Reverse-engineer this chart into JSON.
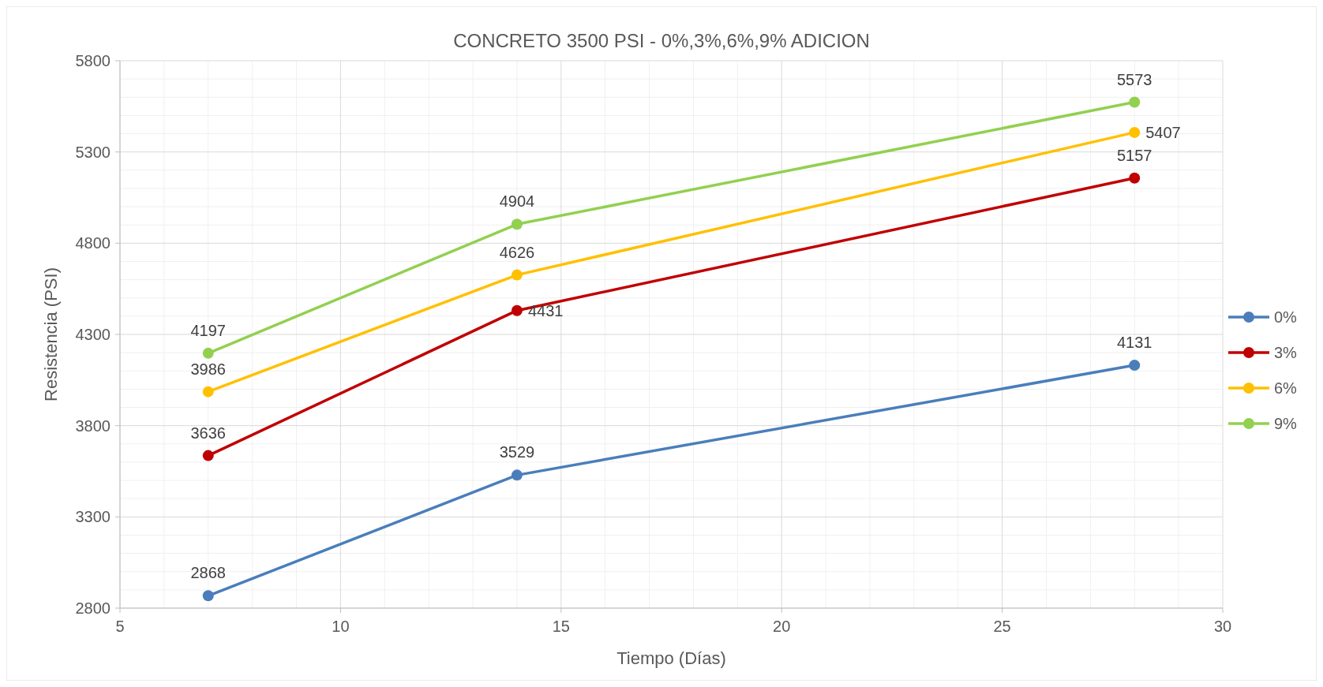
{
  "chart_data": {
    "type": "line",
    "title": "CONCRETO 3500 PSI - 0%,3%,6%,9% ADICION",
    "xlabel": "Tiempo (Días)",
    "ylabel": "Resistencia (PSI)",
    "x": [
      7,
      14,
      28
    ],
    "series": [
      {
        "name": "0%",
        "color": "#4a7ebb",
        "values": [
          2868,
          3529,
          4131
        ]
      },
      {
        "name": "3%",
        "color": "#c00000",
        "values": [
          3636,
          4431,
          5157
        ]
      },
      {
        "name": "6%",
        "color": "#ffc000",
        "values": [
          3986,
          4626,
          5407
        ]
      },
      {
        "name": "9%",
        "color": "#92d050",
        "values": [
          4197,
          4904,
          5573
        ]
      }
    ],
    "xlim": [
      5,
      30
    ],
    "xticks": [
      5,
      10,
      15,
      20,
      25,
      30
    ],
    "ylim": [
      2800,
      5800
    ],
    "yticks": [
      2800,
      3300,
      3800,
      4300,
      4800,
      5300,
      5800
    ],
    "grid": true,
    "legend": "right",
    "marker": "circle",
    "line_style": "solid",
    "data_labels": true
  }
}
